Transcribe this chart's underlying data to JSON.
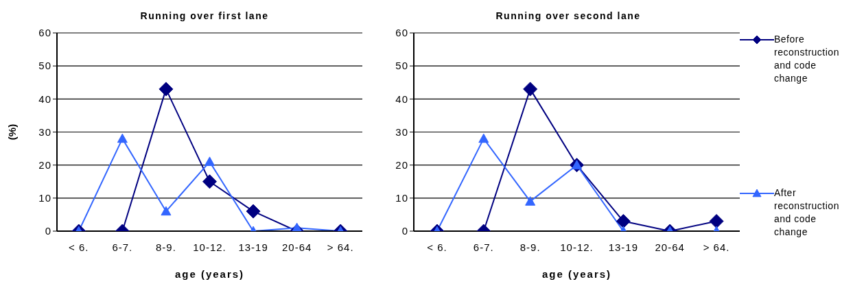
{
  "chart_data": [
    {
      "type": "line",
      "title": "Running over first lane",
      "xlabel": "age (years)",
      "ylabel": "(%)",
      "categories": [
        "< 6.",
        "6-7.",
        "8-9.",
        "10-12.",
        "13-19",
        "20-64",
        "> 64."
      ],
      "series": [
        {
          "color": "#000080",
          "marker": "diamond",
          "values": [
            0,
            0,
            43,
            15,
            6,
            0,
            0
          ]
        },
        {
          "color": "#3366ff",
          "marker": "triangle",
          "values": [
            0,
            28,
            6,
            21,
            0,
            1,
            0
          ]
        }
      ],
      "ylim": [
        0,
        60
      ],
      "yticks": [
        0,
        10,
        20,
        30,
        40,
        50,
        60
      ],
      "grid": "y",
      "legend": false
    },
    {
      "type": "line",
      "title": "Running over second lane",
      "xlabel": "age (years)",
      "categories": [
        "< 6.",
        "6-7.",
        "8-9.",
        "10-12.",
        "13-19",
        "20-64",
        "> 64."
      ],
      "series": [
        {
          "name": "Before reconstruction and code change",
          "color": "#000080",
          "marker": "diamond",
          "values": [
            0,
            0,
            43,
            20,
            3,
            0,
            3
          ]
        },
        {
          "name": "After reconstruction and code change",
          "color": "#3366ff",
          "marker": "triangle",
          "values": [
            0,
            28,
            9,
            20,
            0,
            0,
            0
          ]
        }
      ],
      "ylim": [
        0,
        60
      ],
      "yticks": [
        0,
        10,
        20,
        30,
        40,
        50,
        60
      ],
      "grid": "y",
      "legend": "right"
    }
  ]
}
